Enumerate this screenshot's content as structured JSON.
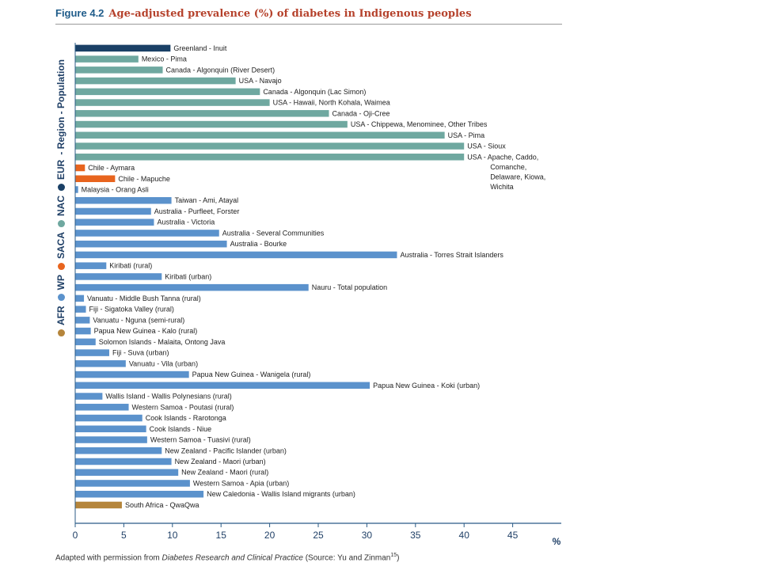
{
  "figure": {
    "number": "Figure 4.2",
    "title": "Age-adjusted prevalence (%) of diabetes in Indigenous peoples"
  },
  "legend": {
    "groups": [
      {
        "code": "AFR",
        "color": "#b5853b"
      },
      {
        "code": "WP",
        "color": "#5b92cc"
      },
      {
        "code": "SACA",
        "color": "#e8641e"
      },
      {
        "code": "NAC",
        "color": "#6fa8a0"
      },
      {
        "code": "EUR",
        "color": "#1a4066"
      }
    ],
    "suffix": "- Region - Population"
  },
  "caption": {
    "prefix": "Adapted with permission from ",
    "source_title": "Diabetes Research and Clinical Practice",
    "suffix": " (Source: Yu and Zinman",
    "ref": "15",
    "close": ")"
  },
  "chart_data": {
    "type": "bar",
    "orientation": "horizontal",
    "xlim": [
      0,
      50
    ],
    "xticks": [
      0,
      5,
      10,
      15,
      20,
      25,
      30,
      35,
      40,
      45
    ],
    "xunit": "%",
    "region_colors": {
      "EUR": "#1a4066",
      "NAC": "#6fa8a0",
      "SACA": "#e8641e",
      "WP": "#5b92cc",
      "AFR": "#b5853b"
    },
    "bars": [
      {
        "label": "Greenland - Inuit",
        "value": 9.8,
        "region": "EUR"
      },
      {
        "label": "Mexico - Pima",
        "value": 6.5,
        "region": "NAC"
      },
      {
        "label": "Canada - Algonquin (River Desert)",
        "value": 9.0,
        "region": "NAC"
      },
      {
        "label": "USA - Navajo",
        "value": 16.5,
        "region": "NAC"
      },
      {
        "label": "Canada - Algonquin (Lac Simon)",
        "value": 19.0,
        "region": "NAC"
      },
      {
        "label": "USA - Hawaii, North Kohala, Waimea",
        "value": 20.0,
        "region": "NAC"
      },
      {
        "label": "Canada - Oji-Cree",
        "value": 26.1,
        "region": "NAC"
      },
      {
        "label": "USA - Chippewa, Menominee, Other Tribes",
        "value": 28.0,
        "region": "NAC"
      },
      {
        "label": "USA - Pima",
        "value": 38.0,
        "region": "NAC"
      },
      {
        "label": "USA - Sioux",
        "value": 40.0,
        "region": "NAC"
      },
      {
        "label": "USA - Apache, Caddo,",
        "label_lines": [
          "Comanche,",
          "Delaware, Kiowa,",
          "Wichita"
        ],
        "value": 40.0,
        "region": "NAC"
      },
      {
        "label": "Chile - Aymara",
        "value": 1.0,
        "region": "SACA"
      },
      {
        "label": "Chile - Mapuche",
        "value": 4.1,
        "region": "SACA"
      },
      {
        "label": "Malaysia - Orang Asli",
        "value": 0.3,
        "region": "WP"
      },
      {
        "label": "Taiwan - Ami, Atayal",
        "value": 9.9,
        "region": "WP"
      },
      {
        "label": "Australia - Purfleet, Forster",
        "value": 7.8,
        "region": "WP"
      },
      {
        "label": "Australia - Victoria",
        "value": 8.1,
        "region": "WP"
      },
      {
        "label": "Australia - Several Communities",
        "value": 14.8,
        "region": "WP"
      },
      {
        "label": "Australia - Bourke",
        "value": 15.6,
        "region": "WP"
      },
      {
        "label": "Australia - Torres Strait Islanders",
        "value": 33.1,
        "region": "WP"
      },
      {
        "label": "Kiribati (rural)",
        "value": 3.2,
        "region": "WP"
      },
      {
        "label": "Kiribati (urban)",
        "value": 8.9,
        "region": "WP"
      },
      {
        "label": "Nauru - Total population",
        "value": 24.0,
        "region": "WP"
      },
      {
        "label": "Vanuatu - Middle Bush Tanna (rural)",
        "value": 0.9,
        "region": "WP"
      },
      {
        "label": "Fiji - Sigatoka Valley (rural)",
        "value": 1.1,
        "region": "WP"
      },
      {
        "label": "Vanuatu - Nguna (semi-rural)",
        "value": 1.5,
        "region": "WP"
      },
      {
        "label": "Papua New Guinea - Kalo (rural)",
        "value": 1.6,
        "region": "WP"
      },
      {
        "label": "Solomon Islands - Malaita, Ontong Java",
        "value": 2.1,
        "region": "WP"
      },
      {
        "label": "Fiji - Suva (urban)",
        "value": 3.5,
        "region": "WP"
      },
      {
        "label": "Vanuatu - Vila (urban)",
        "value": 5.2,
        "region": "WP"
      },
      {
        "label": "Papua New Guinea - Wanigela (rural)",
        "value": 11.7,
        "region": "WP"
      },
      {
        "label": "Papua New Guinea - Koki (urban)",
        "value": 30.3,
        "region": "WP"
      },
      {
        "label": "Wallis Island - Wallis Polynesians (rural)",
        "value": 2.8,
        "region": "WP"
      },
      {
        "label": "Western Samoa - Poutasi (rural)",
        "value": 5.5,
        "region": "WP"
      },
      {
        "label": "Cook Islands - Rarotonga",
        "value": 6.9,
        "region": "WP"
      },
      {
        "label": "Cook Islands - Niue",
        "value": 7.3,
        "region": "WP"
      },
      {
        "label": "Western Samoa - Tuasivi (rural)",
        "value": 7.4,
        "region": "WP"
      },
      {
        "label": "New Zealand - Pacific Islander (urban)",
        "value": 8.9,
        "region": "WP"
      },
      {
        "label": "New Zealand - Maori (urban)",
        "value": 9.9,
        "region": "WP"
      },
      {
        "label": "New Zealand - Maori (rural)",
        "value": 10.6,
        "region": "WP"
      },
      {
        "label": "Western Samoa - Apia (urban)",
        "value": 11.8,
        "region": "WP"
      },
      {
        "label": "New Caledonia - Wallis Island migrants (urban)",
        "value": 13.2,
        "region": "WP"
      },
      {
        "label": "South Africa - QwaQwa",
        "value": 4.8,
        "region": "AFR"
      }
    ]
  }
}
